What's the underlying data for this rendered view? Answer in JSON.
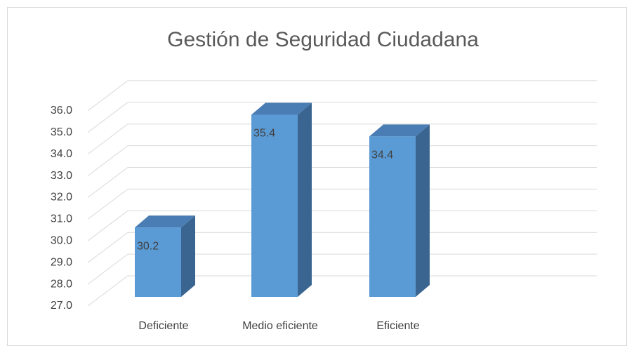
{
  "chart_data": {
    "type": "bar3d",
    "title": "Gestión de Seguridad Ciudadana",
    "categories": [
      "Deficiente",
      "Medio eficiente",
      "Eficiente"
    ],
    "values": [
      30.2,
      35.4,
      34.4
    ],
    "color": "#5b9bd5",
    "ylim": [
      27,
      36
    ],
    "yticks": [
      {
        "value": 27,
        "label": "27.0"
      },
      {
        "value": 28,
        "label": "28.0"
      },
      {
        "value": 29,
        "label": "29.0"
      },
      {
        "value": 30,
        "label": "30.0"
      },
      {
        "value": 31,
        "label": "31.0"
      },
      {
        "value": 32,
        "label": "32.0"
      },
      {
        "value": 33,
        "label": "33.0"
      },
      {
        "value": 34,
        "label": "34.0"
      },
      {
        "value": 35,
        "label": "35.0"
      },
      {
        "value": 36,
        "label": "36.0"
      }
    ],
    "grid": true
  }
}
